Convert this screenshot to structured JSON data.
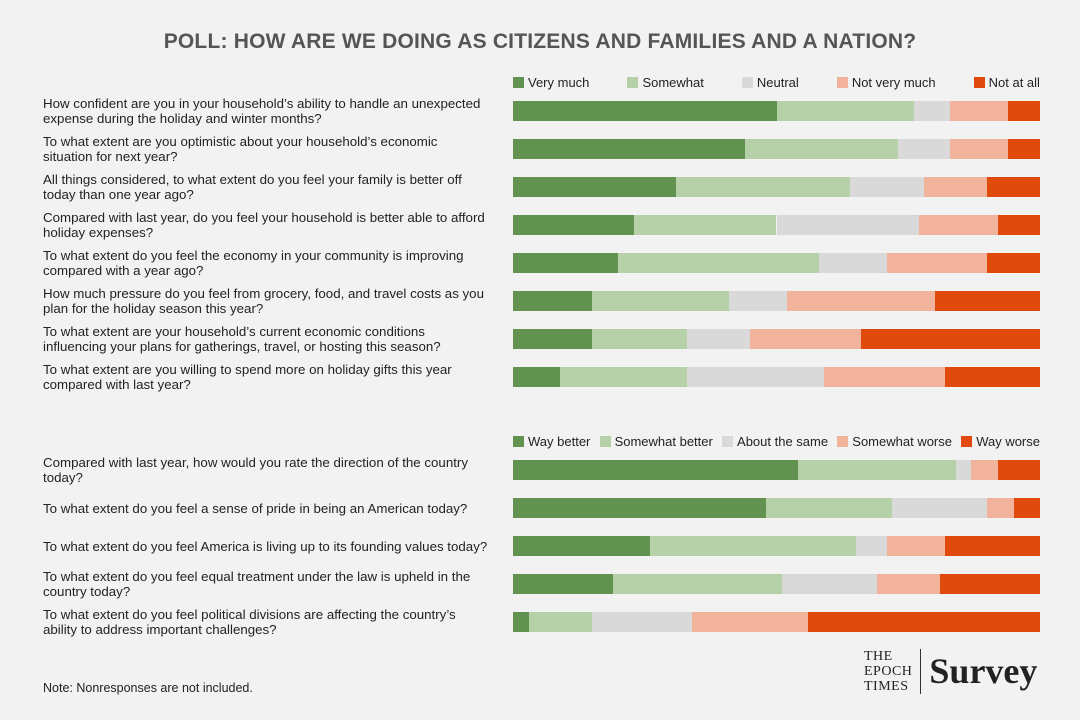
{
  "title": "POLL: HOW ARE WE DOING AS CITIZENS AND FAMILIES AND A NATION?",
  "chart_data": [
    {
      "type": "bar",
      "orientation": "horizontal",
      "stacked": true,
      "categories": [
        "How confident are you in your household’s ability to handle an unexpected expense during the holiday and winter months?",
        "To what extent are you optimistic about your household’s economic situation for next year?",
        "All things considered, to what extent do you feel your family is better off today than one year ago?",
        "Compared with last year, do you feel your household is better able to afford holiday expenses?",
        "To what extent do you feel the economy in your community is improving compared with a year ago?",
        "How much pressure do you feel from grocery, food, and travel costs as you plan for the holiday season this year?",
        "To what extent are your household’s current economic conditions influencing your plans for gatherings, travel, or hosting this season?",
        "To what extent are you willing to spend more on holiday gifts this year compared with last year?"
      ],
      "xlim": [
        0,
        100
      ],
      "series": [
        {
          "name": "Very much",
          "color": "#62924f",
          "values": [
            50,
            44,
            31,
            23,
            20,
            15,
            15,
            9
          ]
        },
        {
          "name": "Somewhat",
          "color": "#b6d1a7",
          "values": [
            26,
            29,
            33,
            27,
            38,
            26,
            18,
            24
          ]
        },
        {
          "name": "Neutral",
          "color": "#d9d9d9",
          "values": [
            7,
            10,
            14,
            27,
            13,
            11,
            12,
            26
          ]
        },
        {
          "name": "Not very much",
          "color": "#f2b39c",
          "values": [
            11,
            11,
            12,
            15,
            19,
            28,
            21,
            23
          ]
        },
        {
          "name": "Not at all",
          "color": "#e04a0c",
          "values": [
            6,
            6,
            10,
            8,
            10,
            20,
            34,
            18
          ]
        }
      ]
    },
    {
      "type": "bar",
      "orientation": "horizontal",
      "stacked": true,
      "categories": [
        "Compared with last year, how would you rate the direction of the country today?",
        "To what extent do you feel a sense of pride in being an American today?",
        "To what extent do you feel America is living up to its founding values today?",
        "To what extent do you feel equal treatment under the law is upheld in the country today?",
        "To what extent do you feel political divisions are affecting the country’s ability to address important challenges?"
      ],
      "xlim": [
        0,
        100
      ],
      "series": [
        {
          "name": "Way better",
          "color": "#62924f",
          "values": [
            54,
            48,
            26,
            19,
            3
          ]
        },
        {
          "name": "Somewhat better",
          "color": "#b6d1a7",
          "values": [
            30,
            24,
            39,
            32,
            12
          ]
        },
        {
          "name": "About the same",
          "color": "#d9d9d9",
          "values": [
            3,
            18,
            6,
            18,
            19
          ]
        },
        {
          "name": "Somewhat worse",
          "color": "#f2b39c",
          "values": [
            5,
            5,
            11,
            12,
            22
          ]
        },
        {
          "name": "Way worse",
          "color": "#e04a0c",
          "values": [
            8,
            5,
            18,
            19,
            44
          ]
        }
      ]
    }
  ],
  "note": "Note: Nonresponses are not included.",
  "logo": {
    "line1": "THE",
    "line2": "EPOCH",
    "line3": "TIMES",
    "label": "Survey"
  }
}
